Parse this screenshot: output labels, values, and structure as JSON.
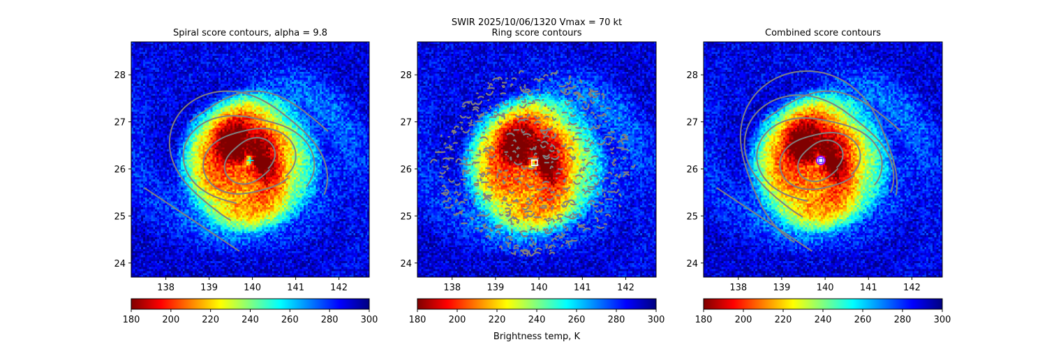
{
  "figure": {
    "suptitle_line1": "SWIR  2025/10/06/1320    Vmax = 70 kt",
    "colorbar_label": "Brightness temp, K"
  },
  "colormap": {
    "name": "jet_r",
    "stops": [
      "#800000",
      "#ff0000",
      "#ff8000",
      "#ffff00",
      "#80ff80",
      "#00ffff",
      "#0080ff",
      "#0000ff",
      "#000080"
    ]
  },
  "contour_color": "#808080",
  "chart_data": [
    {
      "type": "heatmap",
      "title": "Spiral score contours, alpha =  9.8",
      "xlim": [
        137.2,
        142.7
      ],
      "ylim": [
        23.7,
        28.7
      ],
      "xticks": [
        "138",
        "139",
        "140",
        "141",
        "142"
      ],
      "yticks": [
        "24",
        "25",
        "26",
        "27",
        "28"
      ],
      "center": {
        "lon": 139.95,
        "lat": 26.18
      },
      "center_marker": "cross",
      "marker_color": "#00ffff",
      "contours": "spiral",
      "colorbar": {
        "min": 180,
        "max": 300,
        "ticks": [
          "180",
          "200",
          "220",
          "240",
          "260",
          "280",
          "300"
        ]
      }
    },
    {
      "type": "heatmap",
      "title": "Ring score contours",
      "xlim": [
        137.2,
        142.7
      ],
      "ylim": [
        23.7,
        28.7
      ],
      "xticks": [
        "138",
        "139",
        "140",
        "141",
        "142"
      ],
      "yticks": [
        "24",
        "25",
        "26",
        "27",
        "28"
      ],
      "center": {
        "lon": 139.9,
        "lat": 26.13
      },
      "center_marker": "square",
      "marker_color": "#ffffff",
      "contours": "ring",
      "colorbar": {
        "min": 180,
        "max": 300,
        "ticks": [
          "180",
          "200",
          "220",
          "240",
          "260",
          "280",
          "300"
        ]
      }
    },
    {
      "type": "heatmap",
      "title": "Combined score contours",
      "xlim": [
        137.2,
        142.7
      ],
      "ylim": [
        23.7,
        28.7
      ],
      "xticks": [
        "138",
        "139",
        "140",
        "141",
        "142"
      ],
      "yticks": [
        "24",
        "25",
        "26",
        "27",
        "28"
      ],
      "center": {
        "lon": 139.9,
        "lat": 26.18
      },
      "center_marker": "circle",
      "marker_color": "#9900ff",
      "contours": "combined",
      "colorbar": {
        "min": 180,
        "max": 300,
        "ticks": [
          "180",
          "200",
          "220",
          "240",
          "260",
          "280",
          "300"
        ]
      }
    }
  ]
}
